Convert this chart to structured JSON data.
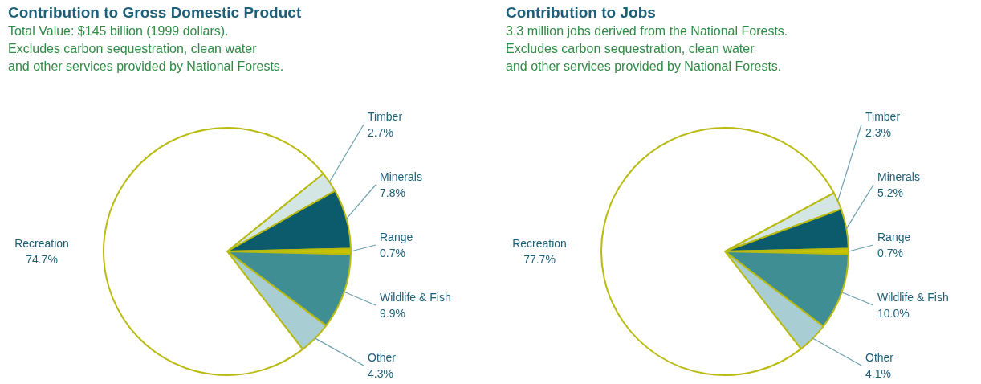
{
  "chart_data": [
    {
      "type": "pie",
      "title": "Contribution to Gross Domestic Product",
      "subtitle": "Total Value: $145 billion (1999 dollars).\nExcludes carbon sequestration, clean water\nand other services provided by National Forests.",
      "categories": [
        "Timber",
        "Minerals",
        "Range",
        "Wildlife & Fish",
        "Other",
        "Recreation"
      ],
      "values": [
        2.7,
        7.8,
        0.7,
        9.9,
        4.3,
        74.7
      ],
      "value_labels": [
        "2.7%",
        "7.8%",
        "0.7%",
        "9.9%",
        "4.3%",
        "74.7%"
      ],
      "colors": [
        "#d3e6e4",
        "#0c5b6c",
        "#c9c400",
        "#3e8e94",
        "#a8cdd3",
        "#ffffff"
      ]
    },
    {
      "type": "pie",
      "title": "Contribution to Jobs",
      "subtitle": "3.3 million jobs derived from the National Forests.\nExcludes carbon sequestration, clean water\nand other services provided by National Forests.",
      "categories": [
        "Timber",
        "Minerals",
        "Range",
        "Wildlife & Fish",
        "Other",
        "Recreation"
      ],
      "values": [
        2.3,
        5.2,
        0.7,
        10.0,
        4.1,
        77.7
      ],
      "value_labels": [
        "2.3%",
        "5.2%",
        "0.7%",
        "10.0%",
        "4.1%",
        "77.7%"
      ],
      "colors": [
        "#d3e6e4",
        "#0c5b6c",
        "#c9c400",
        "#3e8e94",
        "#a8cdd3",
        "#ffffff"
      ]
    }
  ]
}
